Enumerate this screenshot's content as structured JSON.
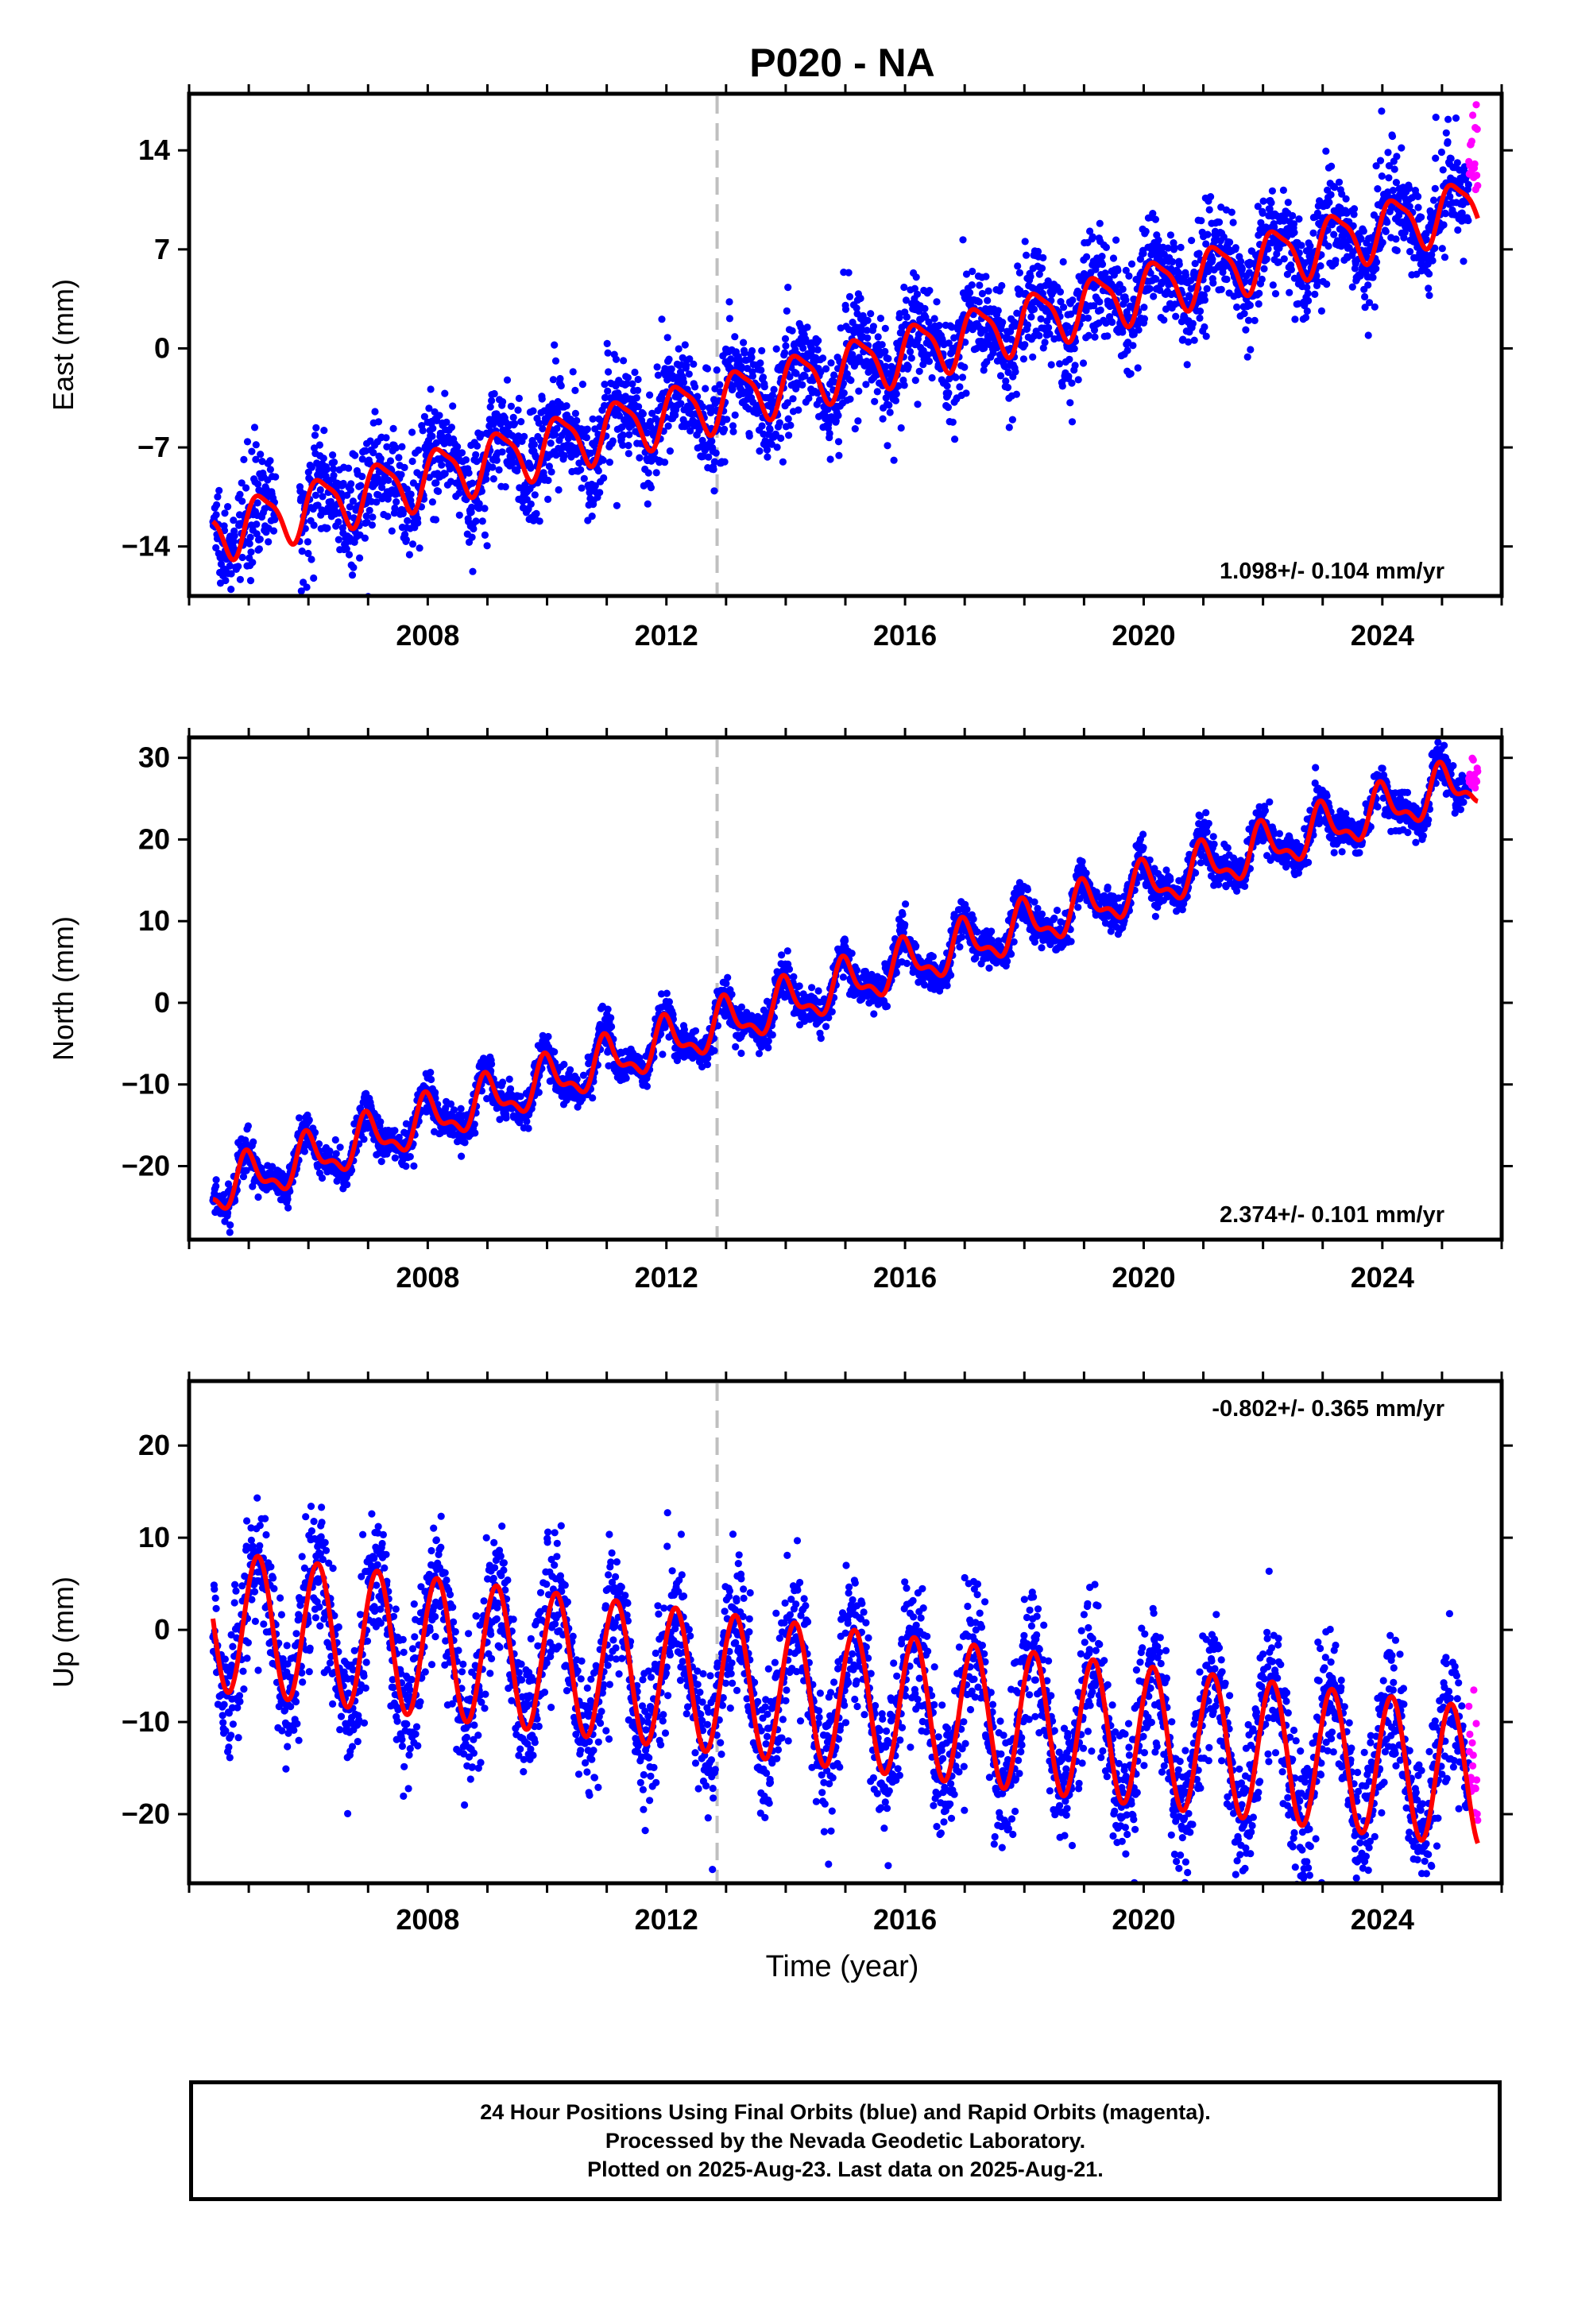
{
  "title": "P020 - NA",
  "x_axis_label": "Time (year)",
  "colors": {
    "final_orbits": "#0000ff",
    "rapid_orbits": "#ff00ff",
    "model_fit": "#ff0000",
    "reference_line": "#bfbfbf"
  },
  "footer": {
    "line1": "24 Hour Positions Using Final Orbits (blue) and Rapid Orbits (magenta).",
    "line2": "Processed by the Nevada Geodetic Laboratory.",
    "line3": "Plotted on 2025-Aug-23. Last data on 2025-Aug-21."
  },
  "chart_data": [
    {
      "type": "scatter",
      "component": "east",
      "ylabel": "East (mm)",
      "xlim": [
        2004.0,
        2026.0
      ],
      "ylim": [
        -17.5,
        18.0
      ],
      "x_ticks": [
        2008,
        2012,
        2016,
        2020,
        2024
      ],
      "y_ticks": [
        -14,
        -7,
        0,
        7,
        14
      ],
      "rate_text": "1.098+/- 0.104 mm/yr",
      "rate_position": "bottom-right",
      "reference_line_x": 2012.85,
      "data_start": 2004.4,
      "data_end": 2025.6,
      "rapid_start": 2025.45,
      "model": {
        "intercept": -13.0,
        "rate": 1.098,
        "annual_amp": 1.9,
        "annual_phase": 0.2,
        "semi_amp": 0.5,
        "semi_phase": 1.2,
        "t0": 2004.4
      },
      "scatter_std": 1.4,
      "season_spread": 1.8
    },
    {
      "type": "scatter",
      "component": "north",
      "ylabel": "North (mm)",
      "xlim": [
        2004.0,
        2026.0
      ],
      "ylim": [
        -29.0,
        32.5
      ],
      "x_ticks": [
        2008,
        2012,
        2016,
        2020,
        2024
      ],
      "y_ticks": [
        -20,
        -10,
        0,
        10,
        20,
        30
      ],
      "rate_text": "2.374+/- 0.101 mm/yr",
      "rate_position": "bottom-right",
      "reference_line_x": 2012.85,
      "data_start": 2004.4,
      "data_end": 2025.6,
      "rapid_start": 2025.45,
      "model": {
        "intercept": -23.0,
        "rate": 2.374,
        "annual_amp": 2.6,
        "annual_phase": 1.6,
        "semi_amp": 1.2,
        "semi_phase": 2.4,
        "t0": 2004.4
      },
      "scatter_std": 1.0,
      "season_spread": 0.8
    },
    {
      "type": "scatter",
      "component": "up",
      "ylabel": "Up (mm)",
      "xlim": [
        2004.0,
        2026.0
      ],
      "ylim": [
        -27.5,
        27.0
      ],
      "x_ticks": [
        2008,
        2012,
        2016,
        2020,
        2024
      ],
      "y_ticks": [
        -20,
        -10,
        0,
        10,
        20
      ],
      "rate_text": "-0.802+/- 0.365 mm/yr",
      "rate_position": "top-right",
      "reference_line_x": 2012.85,
      "data_start": 2004.4,
      "data_end": 2025.6,
      "rapid_start": 2025.45,
      "model": {
        "intercept": 1.0,
        "rate": -0.802,
        "annual_amp": 7.6,
        "annual_phase": 0.6,
        "semi_amp": 0.0,
        "semi_phase": 0.0,
        "t0": 2004.4
      },
      "scatter_std": 3.2,
      "season_spread": 2.0
    }
  ]
}
